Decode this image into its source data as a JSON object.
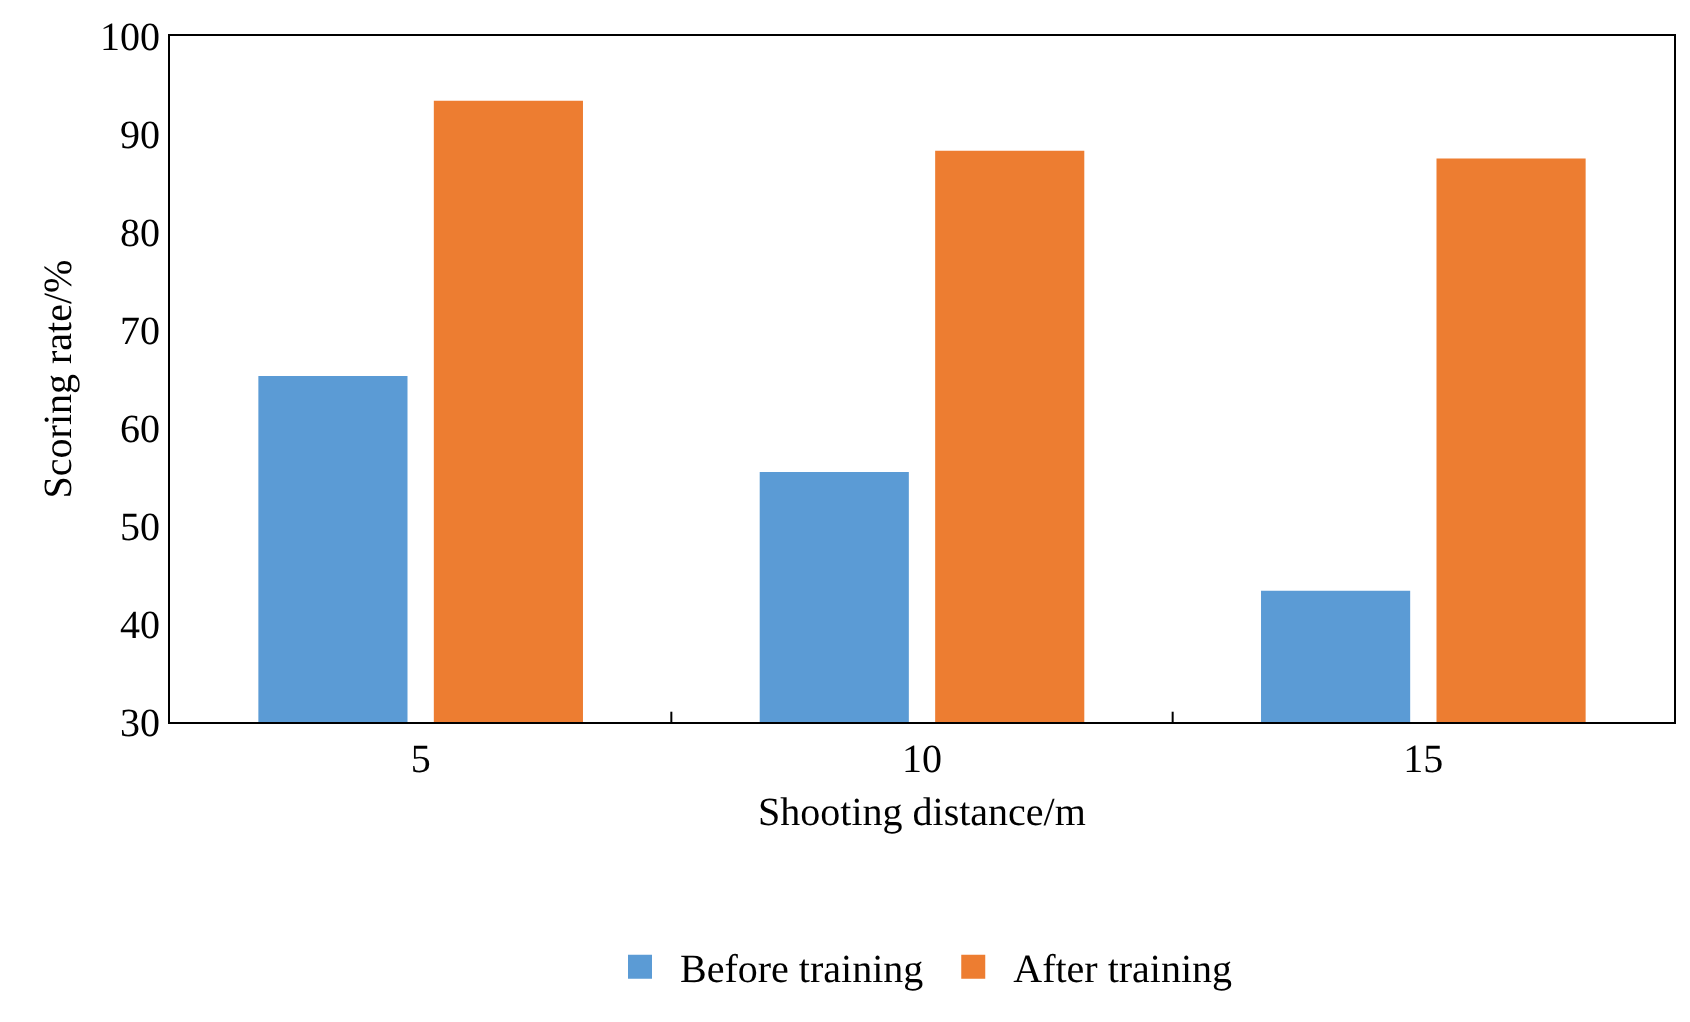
{
  "chart_data": {
    "type": "bar",
    "xlabel": "Shooting distance/m",
    "ylabel": "Scoring rate/%",
    "categories": [
      "5",
      "10",
      "15"
    ],
    "series": [
      {
        "name": "Before training",
        "color": "#5b9bd5",
        "values": [
          65.3,
          55.5,
          43.4
        ]
      },
      {
        "name": "After training",
        "color": "#ed7d31",
        "values": [
          93.4,
          88.3,
          87.5
        ]
      }
    ],
    "ylim": [
      30,
      100
    ],
    "yticks": [
      30,
      40,
      50,
      60,
      70,
      80,
      90,
      100
    ],
    "grid": false,
    "legend": "bottom"
  }
}
